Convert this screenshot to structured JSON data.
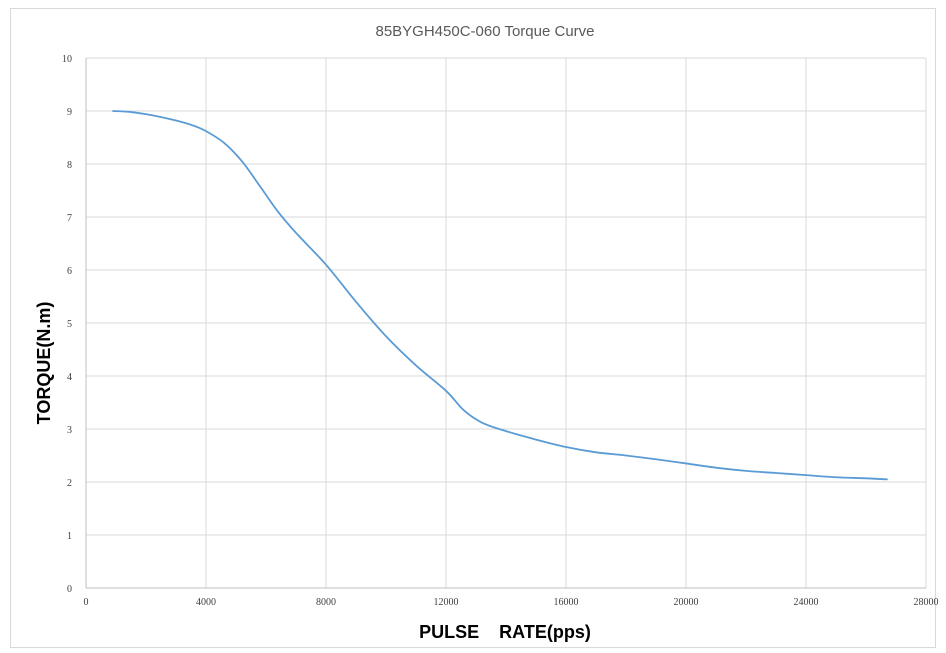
{
  "chart_data": {
    "type": "line",
    "title": "85BYGH450C-060  Torque Curve",
    "xlabel": "PULSE    RATE(pps)",
    "ylabel": "TORQUE(N.m)",
    "xlim": [
      0,
      28000
    ],
    "ylim": [
      0,
      10
    ],
    "xticks": [
      0,
      4000,
      8000,
      12000,
      16000,
      20000,
      24000,
      28000
    ],
    "yticks": [
      0,
      1,
      2,
      3,
      4,
      5,
      6,
      7,
      8,
      9,
      10
    ],
    "grid": true,
    "legend": "none",
    "series": [
      {
        "color": "#5b9bd5",
        "x": [
          900,
          1500,
          2200,
          3000,
          3600,
          4000,
          4600,
          5200,
          5800,
          6400,
          7000,
          8000,
          9000,
          10000,
          11000,
          12000,
          12600,
          13200,
          14000,
          15000,
          16000,
          17000,
          18000,
          19000,
          20000,
          21000,
          22000,
          23000,
          24000,
          25000,
          26000,
          26700
        ],
        "y": [
          9.0,
          8.98,
          8.92,
          8.82,
          8.72,
          8.62,
          8.4,
          8.05,
          7.58,
          7.1,
          6.7,
          6.1,
          5.4,
          4.75,
          4.2,
          3.72,
          3.35,
          3.12,
          2.96,
          2.8,
          2.66,
          2.56,
          2.5,
          2.43,
          2.35,
          2.27,
          2.21,
          2.17,
          2.13,
          2.09,
          2.07,
          2.05
        ]
      }
    ]
  }
}
